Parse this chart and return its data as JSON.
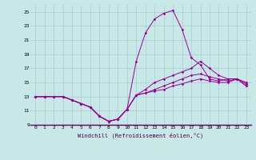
{
  "xlabel": "Windchill (Refroidissement éolien,°C)",
  "bg_color": "#c8e8e8",
  "line_color": "#990099",
  "grid_color": "#a8cccc",
  "xmin": -0.5,
  "xmax": 23.5,
  "ymin": 9,
  "ymax": 26,
  "yticks": [
    9,
    11,
    13,
    15,
    17,
    19,
    21,
    23,
    25
  ],
  "xticks": [
    0,
    1,
    2,
    3,
    4,
    5,
    6,
    7,
    8,
    9,
    10,
    11,
    12,
    13,
    14,
    15,
    16,
    17,
    18,
    19,
    20,
    21,
    22,
    23
  ],
  "series": [
    [
      13,
      13,
      13,
      13,
      12.5,
      12,
      11.5,
      10.2,
      9.5,
      9.8,
      11.2,
      18,
      22,
      24,
      24.8,
      25.2,
      22.5,
      18.5,
      17.5,
      15.5,
      15.2,
      15.5,
      15.5,
      14.5
    ],
    [
      13,
      13,
      13,
      13,
      12.5,
      12,
      11.5,
      10.2,
      9.5,
      9.8,
      11.2,
      13.2,
      14,
      15,
      15.5,
      16,
      16.5,
      17,
      18,
      17,
      16,
      15.5,
      15.5,
      15
    ],
    [
      13,
      13,
      13,
      13,
      12.5,
      12,
      11.5,
      10.2,
      9.5,
      9.8,
      11.2,
      13.2,
      13.5,
      14,
      14.5,
      15,
      15.5,
      16,
      16.2,
      15.8,
      15.5,
      15.2,
      15.5,
      14.8
    ],
    [
      13,
      13,
      13,
      13,
      12.5,
      12,
      11.5,
      10.2,
      9.5,
      9.8,
      11.2,
      13.2,
      13.5,
      13.8,
      14,
      14.5,
      14.8,
      15.2,
      15.5,
      15.2,
      15,
      15,
      15.5,
      14.5
    ]
  ]
}
